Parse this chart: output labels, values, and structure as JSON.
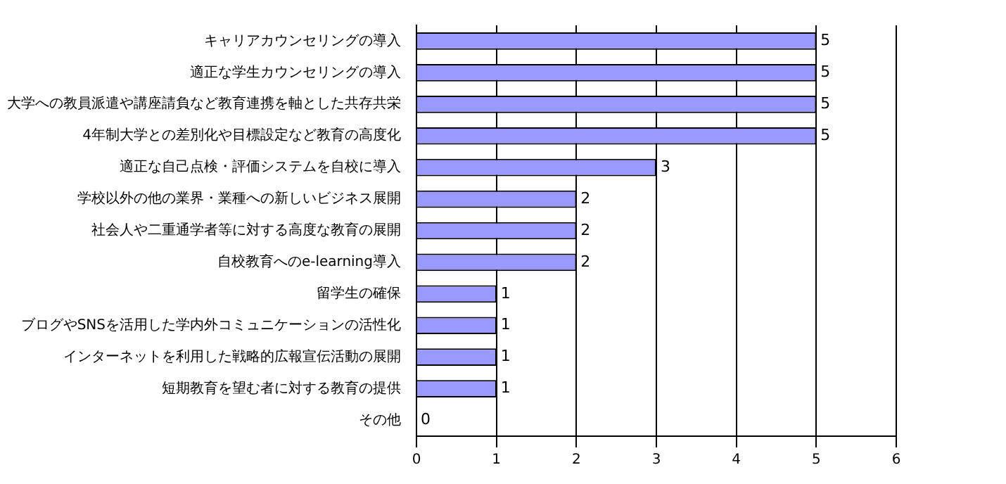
{
  "chart_data": {
    "type": "bar",
    "orientation": "horizontal",
    "categories": [
      "キャリアカウンセリングの導入",
      "適正な学生カウンセリングの導入",
      "大学への教員派遣や講座請負など教育連携を軸とした共存共栄",
      "4年制大学との差別化や目標設定など教育の高度化",
      "適正な自己点検・評価システムを自校に導入",
      "学校以外の他の業界・業種への新しいビジネス展開",
      "社会人や二重通学者等に対する高度な教育の展開",
      "自校教育へのe-learning導入",
      "留学生の確保",
      "ブログやSNSを活用した学内外コミュニケーションの活性化",
      "インターネットを利用した戦略的広報宣伝活動の展開",
      "短期教育を望む者に対する教育の提供",
      "その他"
    ],
    "values": [
      5,
      5,
      5,
      5,
      3,
      2,
      2,
      2,
      1,
      1,
      1,
      1,
      0
    ],
    "color": "#9999ff",
    "xlim": [
      0,
      6
    ],
    "xticks": [
      0,
      1,
      2,
      3,
      4,
      5,
      6
    ],
    "grid": "x",
    "data_labels": true,
    "legend": false
  }
}
